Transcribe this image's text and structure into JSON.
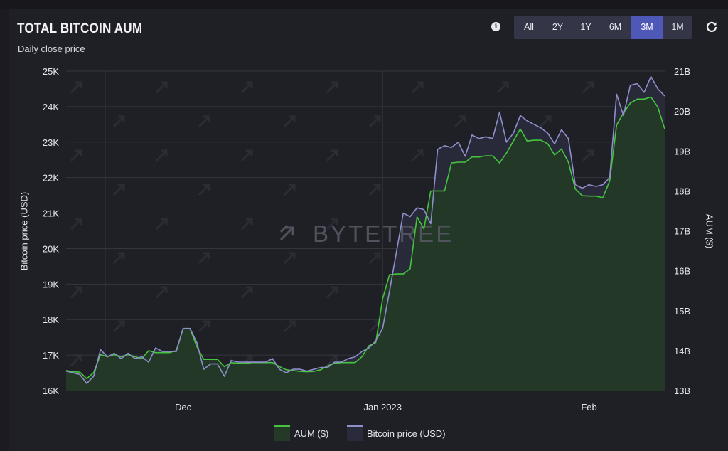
{
  "header": {
    "title": "TOTAL BITCOIN AUM",
    "subtitle": "Daily close price",
    "ranges": [
      "All",
      "2Y",
      "1Y",
      "6M",
      "3M",
      "1M"
    ],
    "active_range": "3M"
  },
  "watermark": "BYTETREE",
  "colors": {
    "aum_line": "#46c440",
    "aum_fill": "#243a27",
    "btc_line": "#8f8fcc",
    "btc_fill": "#2a2b3a",
    "active_button": "#4e58b6"
  },
  "chart_data": {
    "type": "area",
    "title": "TOTAL BITCOIN AUM",
    "subtitle": "Daily close price",
    "x_tick_labels": [
      "Dec",
      "Jan 2023",
      "Feb"
    ],
    "x_tick_positions": [
      17,
      46,
      76
    ],
    "y_left": {
      "label": "Bitcoin price (USD)",
      "ticks": [
        "16K",
        "17K",
        "18K",
        "19K",
        "20K",
        "21K",
        "22K",
        "23K",
        "24K",
        "25K"
      ],
      "range": [
        16000,
        25000
      ]
    },
    "y_right": {
      "label": "AUM ($)",
      "ticks": [
        "13B",
        "14B",
        "15B",
        "16B",
        "17B",
        "18B",
        "19B",
        "20B",
        "21B"
      ],
      "range": [
        13000000000,
        21000000000
      ]
    },
    "grid": true,
    "legend_position": "bottom-center",
    "series": [
      {
        "name": "AUM ($)",
        "axis": "right",
        "values": [
          13.5,
          13.47,
          13.46,
          13.3,
          13.45,
          13.9,
          13.85,
          13.9,
          13.85,
          13.9,
          13.85,
          13.8,
          14.0,
          13.95,
          13.95,
          13.95,
          14.0,
          14.55,
          14.55,
          14.1,
          13.78,
          13.78,
          13.78,
          13.6,
          13.7,
          13.68,
          13.68,
          13.7,
          13.7,
          13.7,
          13.7,
          13.6,
          13.52,
          13.5,
          13.48,
          13.47,
          13.48,
          13.52,
          13.62,
          13.68,
          13.7,
          13.7,
          13.7,
          13.85,
          14.12,
          14.2,
          15.3,
          15.9,
          15.92,
          15.92,
          16.05,
          17.35,
          17.05,
          18.0,
          18.0,
          18.0,
          18.7,
          18.72,
          18.72,
          18.85,
          18.85,
          18.88,
          18.88,
          18.7,
          18.95,
          19.25,
          19.55,
          19.25,
          19.27,
          19.27,
          19.18,
          18.9,
          19.05,
          18.72,
          18.05,
          17.88,
          17.87,
          17.87,
          17.83,
          18.25,
          19.65,
          19.95,
          20.2,
          20.3,
          20.3,
          20.35,
          20.1,
          19.55
        ]
      },
      {
        "name": "Bitcoin price (USD)",
        "axis": "left",
        "values": [
          16550,
          16500,
          16450,
          16200,
          16400,
          17150,
          16950,
          17050,
          16900,
          17050,
          16900,
          16950,
          16800,
          17200,
          17100,
          17100,
          17100,
          17750,
          17750,
          17350,
          16600,
          16750,
          16750,
          16400,
          16850,
          16800,
          16800,
          16800,
          16800,
          16800,
          16900,
          16600,
          16500,
          16600,
          16600,
          16550,
          16600,
          16650,
          16650,
          16800,
          16800,
          16900,
          16950,
          17100,
          17200,
          17400,
          17750,
          18800,
          19900,
          21000,
          20900,
          21150,
          21100,
          20700,
          22800,
          22900,
          22850,
          23000,
          22600,
          23200,
          23100,
          23150,
          23100,
          23850,
          23000,
          23250,
          23750,
          23600,
          23500,
          23400,
          23250,
          22950,
          23350,
          23100,
          21800,
          21700,
          21800,
          21750,
          21800,
          22000,
          24350,
          23750,
          24600,
          24650,
          24400,
          24850,
          24500,
          24300
        ]
      }
    ]
  }
}
